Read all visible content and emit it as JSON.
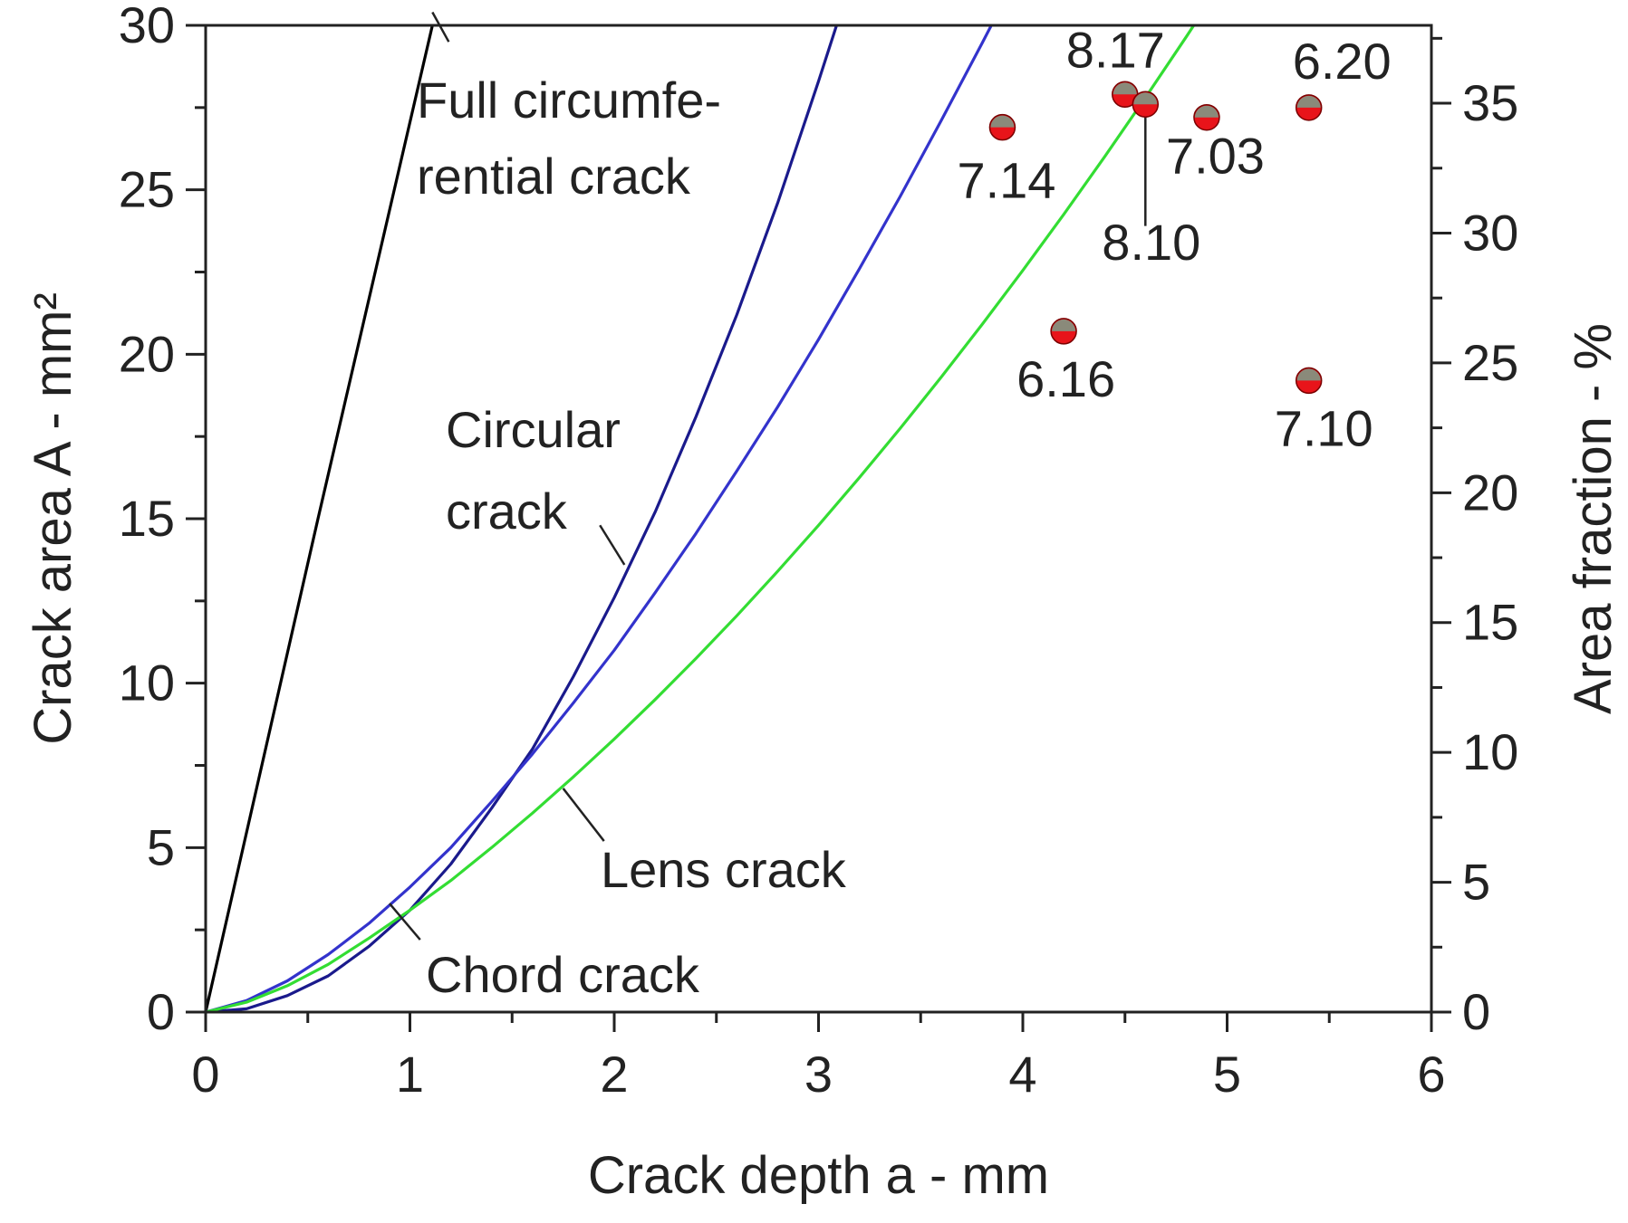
{
  "chart_data": {
    "type": "line",
    "xlabel": "Crack depth a - mm",
    "ylabel": "Crack area A - mm²",
    "y2label": "Area fraction - %",
    "xlim": [
      0,
      6
    ],
    "ylim": [
      0,
      30
    ],
    "y2lim": [
      0,
      38
    ],
    "x_ticks": [
      "0",
      "1",
      "2",
      "3",
      "4",
      "5",
      "6"
    ],
    "y_ticks": [
      "0",
      "5",
      "10",
      "15",
      "20",
      "25",
      "30"
    ],
    "y2_ticks": [
      "0",
      "5",
      "10",
      "15",
      "20",
      "25",
      "30",
      "35"
    ],
    "grid": false,
    "series": [
      {
        "color": "#000000",
        "x": [
          0,
          0.55,
          1.11
        ],
        "y": [
          0,
          15,
          30
        ]
      },
      {
        "color": "#1a1a8c",
        "x": [
          0,
          0.2,
          0.4,
          0.6,
          0.8,
          1.0,
          1.2,
          1.4,
          1.6,
          1.8,
          2.0,
          2.2,
          2.4,
          2.6,
          2.8,
          3.0,
          3.14
        ],
        "y": [
          0,
          0.1,
          0.5,
          1.1,
          2.0,
          3.1,
          4.5,
          6.2,
          8.0,
          10.2,
          12.6,
          15.2,
          18.1,
          21.2,
          24.6,
          28.3,
          31.0
        ]
      },
      {
        "color": "#3333cc",
        "x": [
          0,
          0.2,
          0.4,
          0.6,
          0.8,
          1.0,
          1.2,
          1.4,
          1.6,
          1.8,
          2.0,
          2.2,
          2.4,
          2.6,
          2.8,
          3.0,
          3.2,
          3.4,
          3.6,
          3.8,
          4.0,
          4.15
        ],
        "y": [
          0,
          0.35,
          0.95,
          1.75,
          2.7,
          3.8,
          5.0,
          6.4,
          7.85,
          9.4,
          11.0,
          12.75,
          14.55,
          16.45,
          18.4,
          20.45,
          22.6,
          24.8,
          27.1,
          29.45,
          31.85,
          33.7
        ]
      },
      {
        "color": "#33dd33",
        "x": [
          0,
          0.2,
          0.4,
          0.6,
          0.8,
          1.0,
          1.2,
          1.4,
          1.6,
          1.8,
          2.0,
          2.2,
          2.4,
          2.6,
          2.8,
          3.0,
          3.2,
          3.4,
          3.6,
          3.8,
          4.0,
          4.2,
          4.4,
          4.6,
          4.8,
          5.0,
          5.1
        ],
        "y": [
          0,
          0.3,
          0.8,
          1.45,
          2.25,
          3.1,
          4.0,
          5.0,
          6.05,
          7.15,
          8.3,
          9.5,
          10.75,
          12.05,
          13.4,
          14.8,
          16.25,
          17.75,
          19.3,
          20.9,
          22.55,
          24.25,
          26.0,
          27.8,
          29.65,
          31.55,
          32.5
        ]
      }
    ],
    "points": {
      "color": "#e8141a",
      "x": [
        3.9,
        4.5,
        4.6,
        4.9,
        5.4,
        4.2,
        5.4
      ],
      "y": [
        26.9,
        27.9,
        27.6,
        27.2,
        27.5,
        20.7,
        19.2
      ],
      "labels": [
        "7.14",
        "8.17",
        "8.10",
        "7.03",
        "6.20",
        "6.16",
        "7.10"
      ]
    },
    "annotations": [
      "Full circumfe-",
      "rential crack",
      "Circular",
      "crack",
      "Lens crack",
      "Chord crack"
    ]
  }
}
